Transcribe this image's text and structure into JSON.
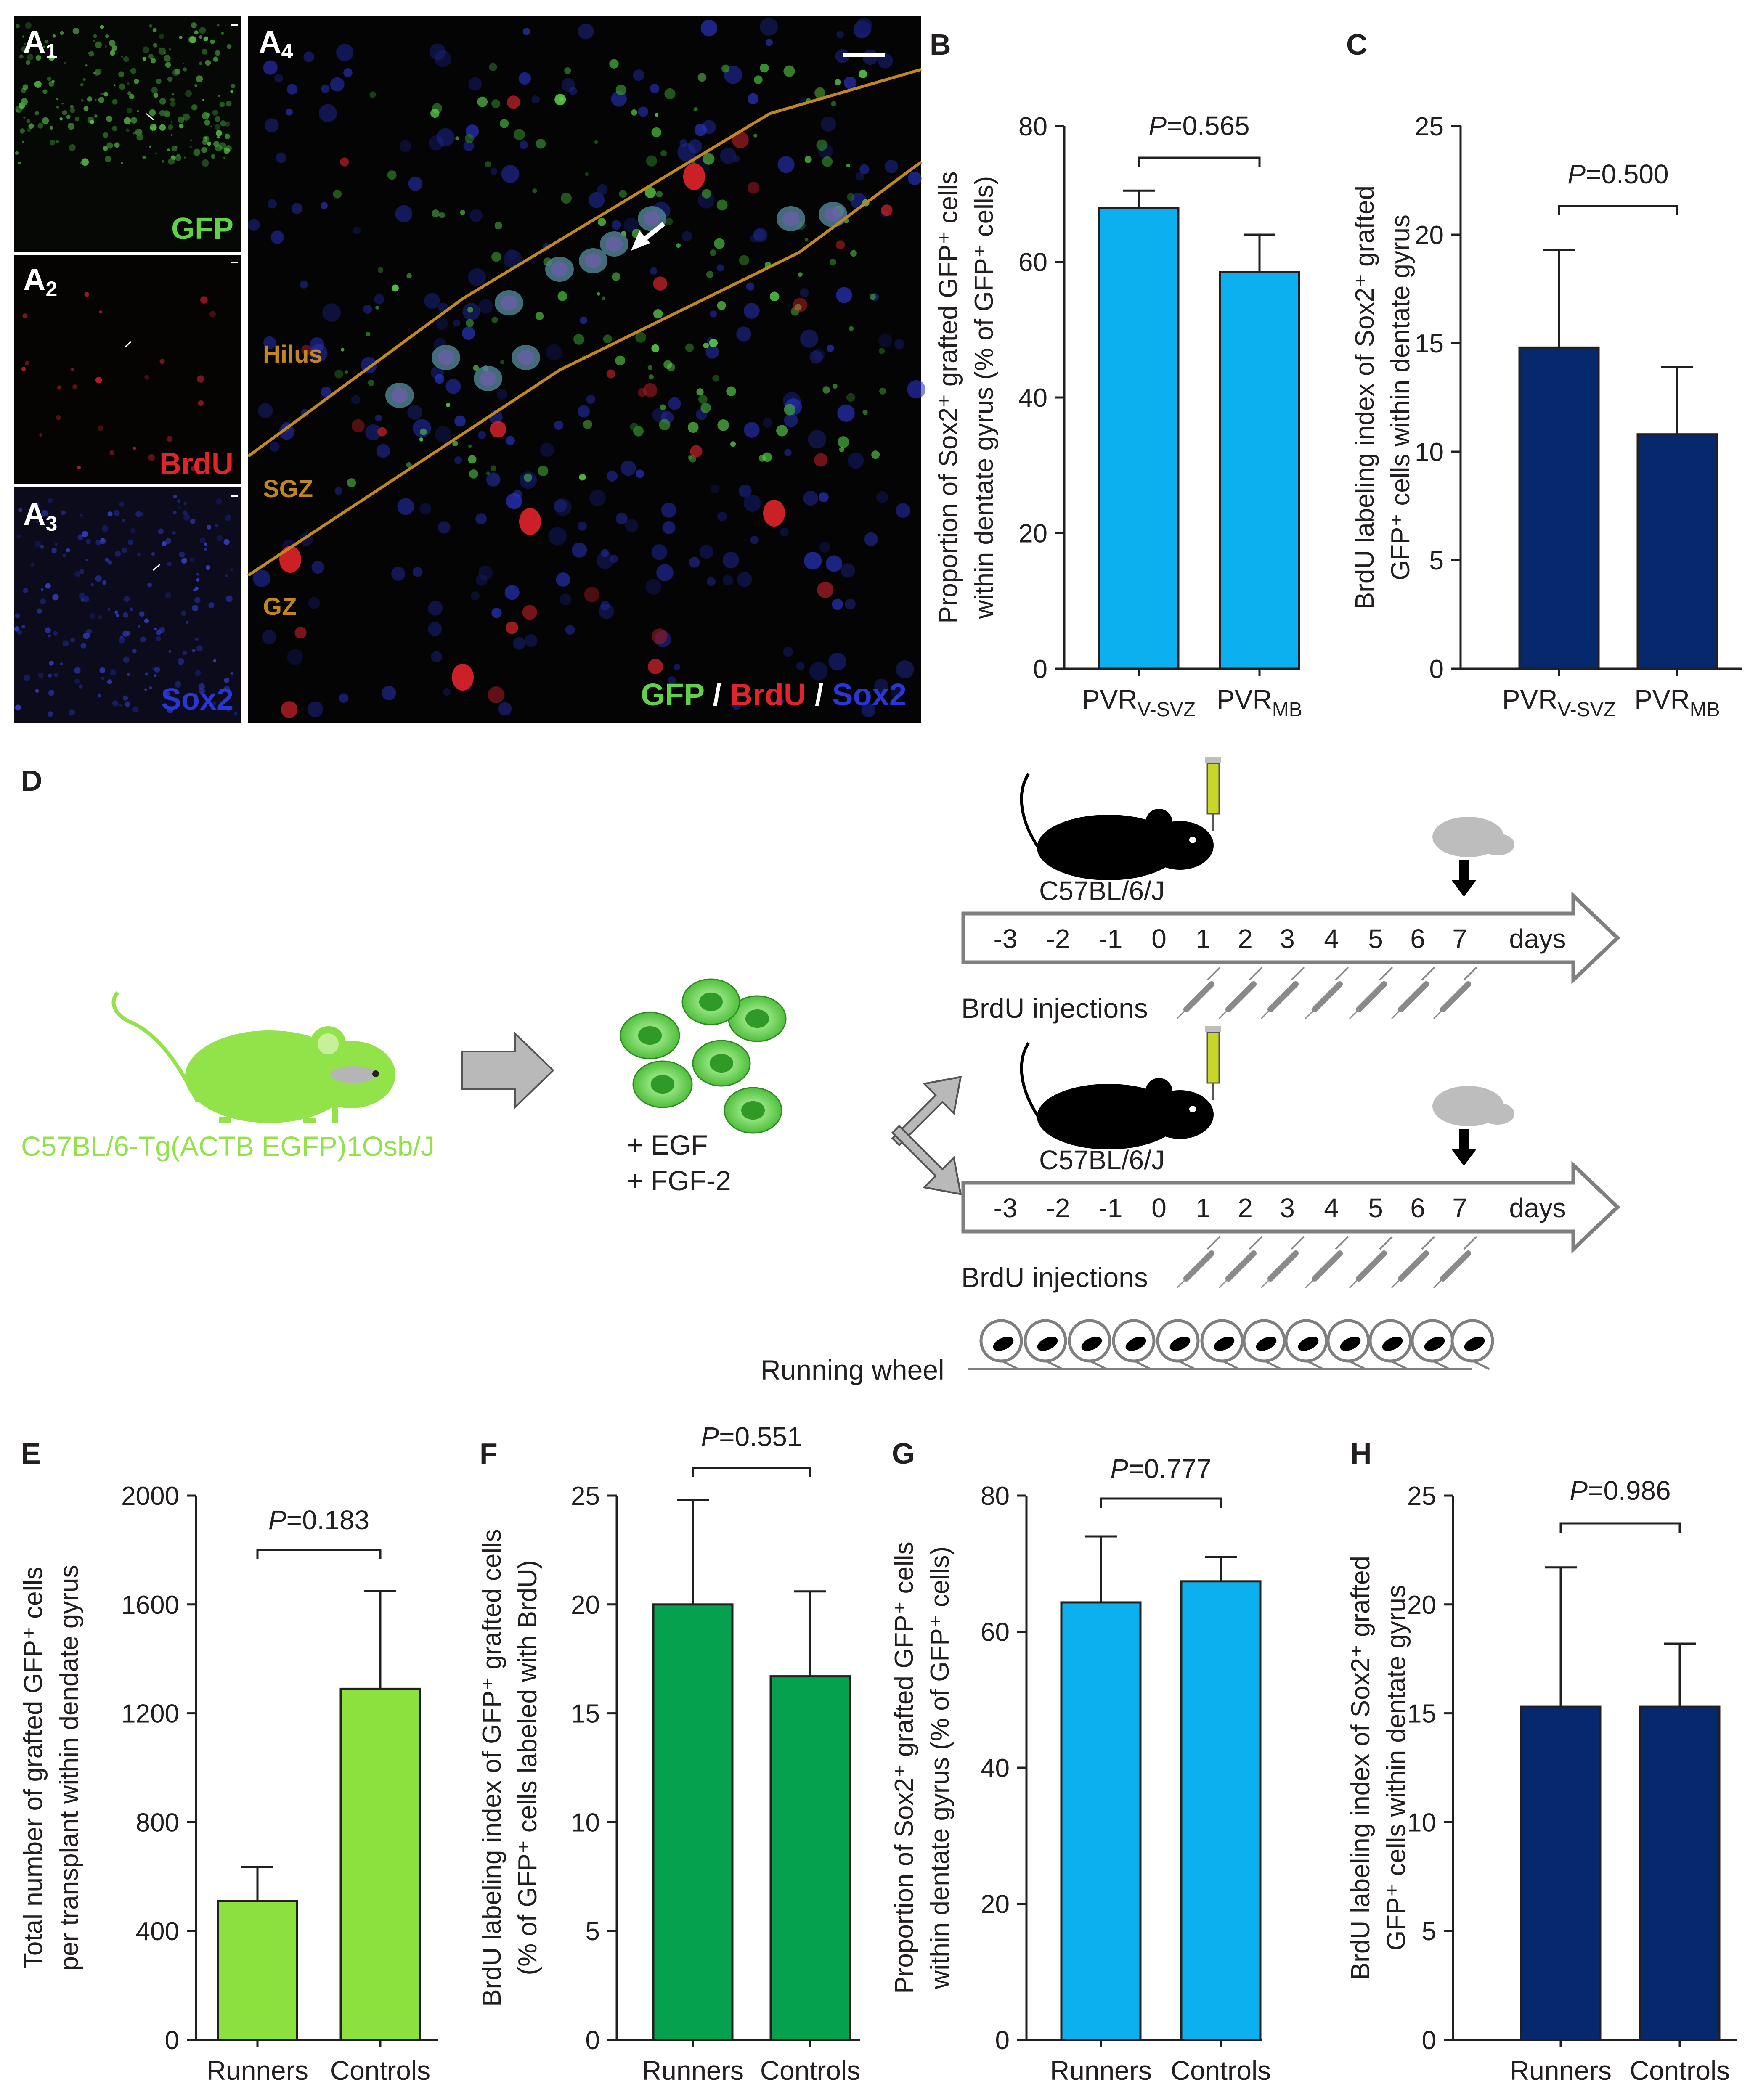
{
  "colors": {
    "bar_cyan": "#0db0ee",
    "bar_navy": "#06286d",
    "bar_lime": "#8de13c",
    "bar_green": "#06a14e",
    "gfp": "#62d14a",
    "brdu": "#e0242a",
    "sox2": "#2a35d8",
    "boundary": "#c1861f",
    "mouse_green": "#92e34a",
    "arrow_gray": "#b9b9b9"
  },
  "panel_A": {
    "a1_label": "A",
    "a1_sub": "1",
    "a1_stain": "GFP",
    "a2_label": "A",
    "a2_sub": "2",
    "a2_stain": "BrdU",
    "a3_label": "A",
    "a3_sub": "3",
    "a3_stain": "Sox2",
    "a4_label": "A",
    "a4_sub": "4",
    "region_hilus": "Hilus",
    "region_sgz": "SGZ",
    "region_gz": "GZ",
    "merge_gfp": "GFP",
    "merge_sep1": " / ",
    "merge_brdu": "BrdU",
    "merge_sep2": " / ",
    "merge_sox2": "Sox2"
  },
  "panel_D": {
    "label": "D",
    "donor_strain": "C57BL/6-Tg(ACTB EGFP)1Osb/J",
    "growth_factor_1": "+ EGF",
    "growth_factor_2": "+ FGF-2",
    "recipient_strain": "C57BL/6/J",
    "timeline_days": [
      "-3",
      "-2",
      "-1",
      "0",
      "1",
      "2",
      "3",
      "4",
      "5",
      "6",
      "7"
    ],
    "timeline_unit": "days",
    "brdu_label": "BrdU injections",
    "wheel_label": "Running wheel"
  },
  "chart_data": [
    {
      "panel": "B",
      "type": "bar",
      "categories": [
        {
          "main": "PVR",
          "sub": "V-SVZ"
        },
        {
          "main": "PVR",
          "sub": "MB"
        }
      ],
      "values": [
        68,
        58.5
      ],
      "errors": [
        2.5,
        5.5
      ],
      "ylim": [
        0,
        80
      ],
      "yticks": [
        "0",
        "20",
        "40",
        "60",
        "80"
      ],
      "ylabel_line1": "Proportion of Sox2⁺ grafted GFP⁺ cells",
      "ylabel_line2": "within dentate gyrus (% of GFP⁺ cells)",
      "p_italic": "P",
      "p_value": "=0.565",
      "color": "#0db0ee"
    },
    {
      "panel": "C",
      "type": "bar",
      "categories": [
        {
          "main": "PVR",
          "sub": "V-SVZ"
        },
        {
          "main": "PVR",
          "sub": "MB"
        }
      ],
      "values": [
        14.8,
        10.8
      ],
      "errors": [
        4.5,
        3.1
      ],
      "ylim": [
        0,
        25
      ],
      "yticks": [
        "0",
        "5",
        "10",
        "15",
        "20",
        "25"
      ],
      "ylabel_line1": "BrdU labeling index of Sox2⁺ grafted",
      "ylabel_line2": "GFP⁺ cells within dentate gyrus",
      "p_italic": "P",
      "p_value": "=0.500",
      "color": "#06286d"
    },
    {
      "panel": "E",
      "type": "bar",
      "categories": [
        {
          "main": "Runners",
          "sub": ""
        },
        {
          "main": "Controls",
          "sub": ""
        }
      ],
      "values": [
        510,
        1290
      ],
      "errors": [
        125,
        360
      ],
      "ylim": [
        0,
        2000
      ],
      "yticks": [
        "0",
        "400",
        "800",
        "1200",
        "1600",
        "2000"
      ],
      "ylabel_line1": "Total number of grafted GFP⁺ cells",
      "ylabel_line2": "per transplant within dendate gyrus",
      "p_italic": "P",
      "p_value": "=0.183",
      "color": "#8de13c"
    },
    {
      "panel": "F",
      "type": "bar",
      "categories": [
        {
          "main": "Runners",
          "sub": ""
        },
        {
          "main": "Controls",
          "sub": ""
        }
      ],
      "values": [
        20,
        16.7
      ],
      "errors": [
        4.8,
        3.9
      ],
      "ylim": [
        0,
        25
      ],
      "yticks": [
        "0",
        "5",
        "10",
        "15",
        "20",
        "25"
      ],
      "ylabel_line1": "BrdU labeling index of GFP⁺ grafted cells",
      "ylabel_line2": "(% of GFP⁺ cells labeled with BrdU)",
      "p_italic": "P",
      "p_value": "=0.551",
      "color": "#06a14e"
    },
    {
      "panel": "G",
      "type": "bar",
      "categories": [
        {
          "main": "Runners",
          "sub": ""
        },
        {
          "main": "Controls",
          "sub": ""
        }
      ],
      "values": [
        64.3,
        67.4
      ],
      "errors": [
        9.7,
        3.6
      ],
      "ylim": [
        0,
        80
      ],
      "yticks": [
        "0",
        "20",
        "40",
        "60",
        "80"
      ],
      "ylabel_line1": "Proportion of Sox2⁺ grafted GFP⁺ cells",
      "ylabel_line2": "within dentate gyrus (% of GFP⁺ cells)",
      "p_italic": "P",
      "p_value": "=0.777",
      "color": "#0db0ee"
    },
    {
      "panel": "H",
      "type": "bar",
      "categories": [
        {
          "main": "Runners",
          "sub": ""
        },
        {
          "main": "Controls",
          "sub": ""
        }
      ],
      "values": [
        15.3,
        15.3
      ],
      "errors": [
        6.4,
        2.9
      ],
      "ylim": [
        0,
        25
      ],
      "yticks": [
        "0",
        "5",
        "10",
        "15",
        "20",
        "25"
      ],
      "ylabel_line1": "BrdU labeling index of Sox2⁺ grafted",
      "ylabel_line2": "GFP⁺ cells within dentate gyrus",
      "p_italic": "P",
      "p_value": "=0.986",
      "color": "#06286d"
    }
  ]
}
